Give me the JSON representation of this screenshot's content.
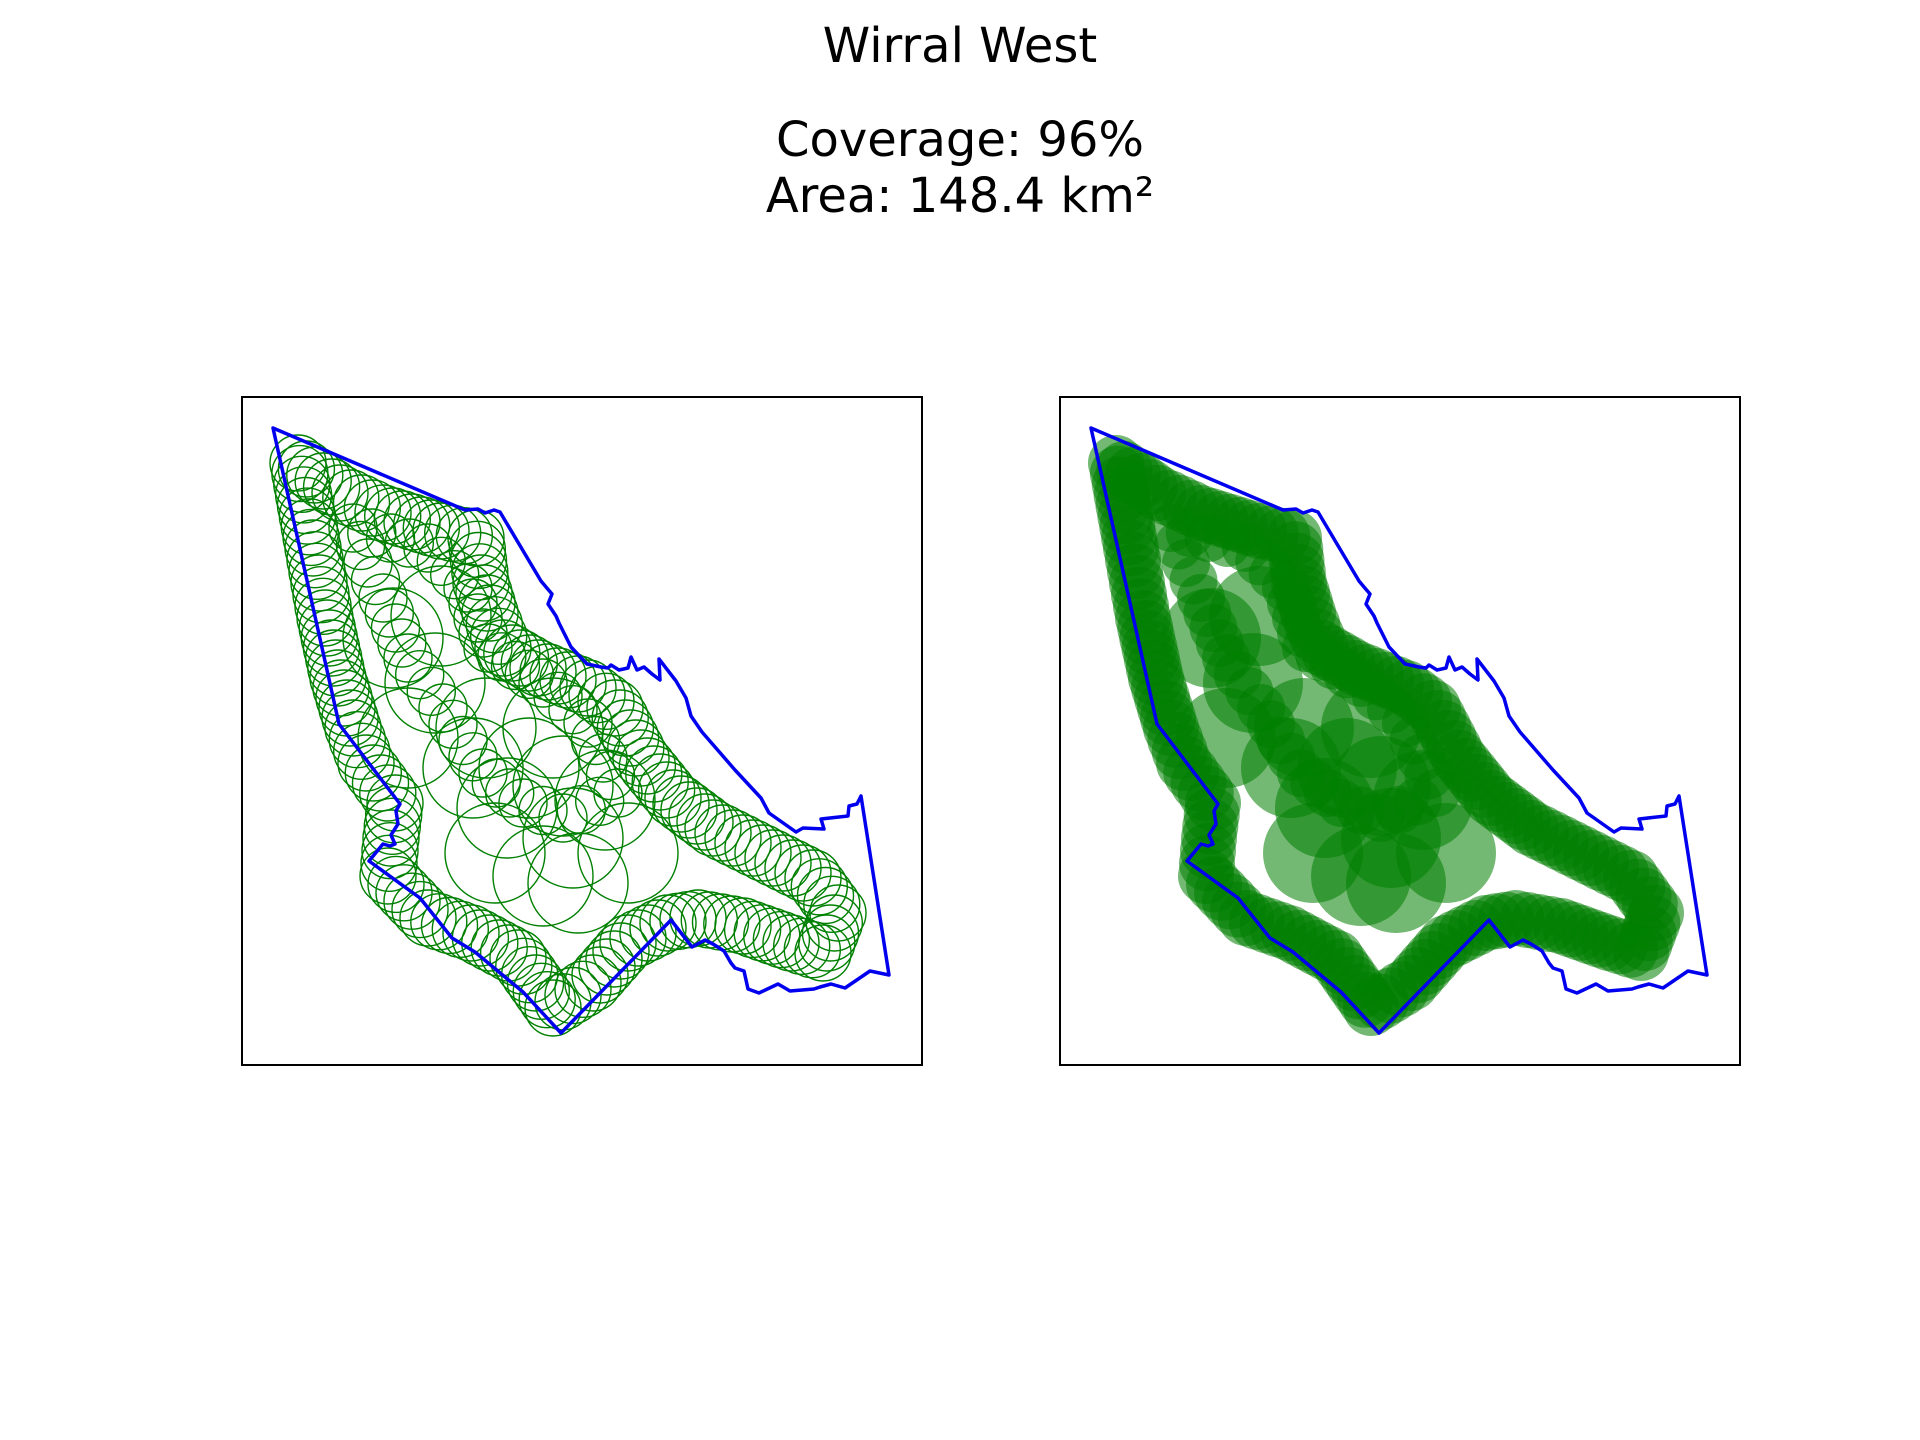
{
  "figure": {
    "title": "Wirral West",
    "coverage_text": "Coverage: 96%",
    "area_text": "Area: 148.4 km²"
  },
  "colors": {
    "boundary": "#0000ee",
    "coverage": "#008000",
    "frame": "#000000",
    "background": "#ffffff"
  },
  "panels": [
    {
      "id": "left",
      "style": "circle-outlines"
    },
    {
      "id": "right",
      "style": "filled-circles"
    }
  ]
}
